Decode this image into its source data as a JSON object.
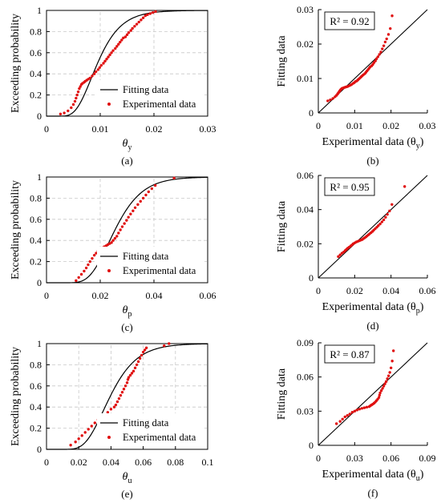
{
  "colors": {
    "fit_line": "#000000",
    "points": "#e01010",
    "grid": "#c8c8c8"
  },
  "chart_data": [
    {
      "type": "line",
      "panel_label": "(a)",
      "xlabel": "θ",
      "xlabel_sub": "y",
      "ylabel": "Exceeding probability",
      "xlim": [
        0,
        0.03
      ],
      "ylim": [
        0,
        1
      ],
      "xticks": [
        "0",
        "0.01",
        "0.02",
        "0.03"
      ],
      "yticks": [
        "0",
        "0.2",
        "0.4",
        "0.6",
        "0.8",
        "1"
      ],
      "grid": true,
      "legend_position": "bottom-right",
      "series": [
        {
          "name": "Fitting data",
          "kind": "line",
          "model": "lognormal",
          "median": 0.0095,
          "beta": 0.36
        },
        {
          "name": "Experimental data",
          "kind": "scatter",
          "x": [
            0.0026,
            0.0033,
            0.004,
            0.0046,
            0.005,
            0.0053,
            0.0055,
            0.0057,
            0.0059,
            0.0061,
            0.0063,
            0.0065,
            0.0067,
            0.007,
            0.0072,
            0.0075,
            0.0078,
            0.0081,
            0.0085,
            0.0089,
            0.0092,
            0.0096,
            0.0099,
            0.0102,
            0.0106,
            0.0109,
            0.0112,
            0.0115,
            0.0118,
            0.0121,
            0.0124,
            0.0128,
            0.0131,
            0.0134,
            0.0137,
            0.014,
            0.0143,
            0.0147,
            0.015,
            0.0153,
            0.0157,
            0.016,
            0.0164,
            0.0168,
            0.0172,
            0.0176,
            0.018,
            0.0184,
            0.0188,
            0.0193,
            0.0198,
            0.0203
          ],
          "y": [
            0.02,
            0.03,
            0.05,
            0.08,
            0.11,
            0.14,
            0.17,
            0.2,
            0.23,
            0.26,
            0.28,
            0.3,
            0.31,
            0.32,
            0.33,
            0.34,
            0.35,
            0.36,
            0.38,
            0.4,
            0.42,
            0.44,
            0.46,
            0.48,
            0.5,
            0.52,
            0.54,
            0.56,
            0.58,
            0.6,
            0.62,
            0.64,
            0.66,
            0.68,
            0.7,
            0.72,
            0.74,
            0.75,
            0.77,
            0.79,
            0.81,
            0.83,
            0.85,
            0.87,
            0.89,
            0.91,
            0.93,
            0.95,
            0.96,
            0.97,
            0.98,
            0.99
          ]
        }
      ]
    },
    {
      "type": "scatter",
      "panel_label": "(b)",
      "xlabel": "Experimental data (θ",
      "xlabel_sub": "y",
      "xlabel_end": ")",
      "ylabel": "Fitting data",
      "annotation": "R² = 0.92",
      "xlim": [
        0,
        0.03
      ],
      "ylim": [
        0,
        0.03
      ],
      "xticks": [
        "0",
        "0.01",
        "0.02",
        "0.03"
      ],
      "yticks": [
        "0",
        "0.01",
        "0.02",
        "0.03"
      ],
      "grid": false,
      "reference_line": "y=x",
      "series": [
        {
          "x": [
            0.0026,
            0.0033,
            0.004,
            0.0046,
            0.005,
            0.0053,
            0.0055,
            0.0057,
            0.0059,
            0.0061,
            0.0063,
            0.0065,
            0.0067,
            0.007,
            0.0072,
            0.0075,
            0.0078,
            0.0081,
            0.0085,
            0.0089,
            0.0092,
            0.0096,
            0.0099,
            0.0102,
            0.0106,
            0.0109,
            0.0112,
            0.0115,
            0.0118,
            0.0121,
            0.0124,
            0.0128,
            0.0131,
            0.0134,
            0.0137,
            0.014,
            0.0143,
            0.0147,
            0.015,
            0.0153,
            0.0157,
            0.016,
            0.0164,
            0.0168,
            0.0172,
            0.0176,
            0.018,
            0.0184,
            0.0188,
            0.0193,
            0.0198,
            0.0203
          ],
          "y": [
            0.0035,
            0.0038,
            0.0042,
            0.0047,
            0.0051,
            0.0055,
            0.0058,
            0.0061,
            0.0064,
            0.0067,
            0.0069,
            0.0071,
            0.0072,
            0.0073,
            0.0074,
            0.0075,
            0.0076,
            0.0077,
            0.0079,
            0.0081,
            0.0083,
            0.0086,
            0.0088,
            0.0091,
            0.0093,
            0.0096,
            0.0099,
            0.0102,
            0.0105,
            0.0108,
            0.0111,
            0.0114,
            0.0118,
            0.0122,
            0.0126,
            0.013,
            0.0134,
            0.0137,
            0.0141,
            0.0146,
            0.0151,
            0.0157,
            0.0163,
            0.017,
            0.0177,
            0.0186,
            0.0195,
            0.0206,
            0.0215,
            0.0228,
            0.0245,
            0.0282
          ]
        }
      ]
    },
    {
      "type": "line",
      "panel_label": "(c)",
      "xlabel": "θ",
      "xlabel_sub": "p",
      "ylabel": "Exceeding probability",
      "xlim": [
        0,
        0.06
      ],
      "ylim": [
        0,
        1
      ],
      "xticks": [
        "0",
        "0.02",
        "0.04",
        "0.06"
      ],
      "yticks": [
        "0",
        "0.2",
        "0.4",
        "0.6",
        "0.8",
        "1"
      ],
      "grid": true,
      "legend_position": "bottom-right",
      "series": [
        {
          "name": "Fitting data",
          "kind": "line",
          "model": "lognormal",
          "median": 0.0255,
          "beta": 0.31
        },
        {
          "name": "Experimental data",
          "kind": "scatter",
          "x": [
            0.011,
            0.012,
            0.013,
            0.014,
            0.0148,
            0.0155,
            0.0162,
            0.017,
            0.0178,
            0.0185,
            0.0192,
            0.02,
            0.0208,
            0.0215,
            0.0222,
            0.0228,
            0.0235,
            0.0242,
            0.0248,
            0.0255,
            0.0262,
            0.0268,
            0.0275,
            0.0282,
            0.029,
            0.0298,
            0.0305,
            0.0313,
            0.0322,
            0.033,
            0.034,
            0.035,
            0.036,
            0.037,
            0.038,
            0.0392,
            0.0405,
            0.0475
          ],
          "y": [
            0.02,
            0.05,
            0.08,
            0.11,
            0.14,
            0.17,
            0.2,
            0.23,
            0.26,
            0.28,
            0.3,
            0.32,
            0.33,
            0.34,
            0.35,
            0.36,
            0.37,
            0.38,
            0.4,
            0.42,
            0.44,
            0.47,
            0.5,
            0.53,
            0.56,
            0.59,
            0.62,
            0.65,
            0.68,
            0.71,
            0.74,
            0.77,
            0.8,
            0.83,
            0.86,
            0.89,
            0.92,
            0.99
          ]
        }
      ]
    },
    {
      "type": "scatter",
      "panel_label": "(d)",
      "xlabel": "Experimental data (θ",
      "xlabel_sub": "p",
      "xlabel_end": ")",
      "ylabel": "Fitting data",
      "annotation": "R² = 0.95",
      "xlim": [
        0,
        0.06
      ],
      "ylim": [
        0,
        0.06
      ],
      "xticks": [
        "0",
        "0.02",
        "0.04",
        "0.06"
      ],
      "yticks": [
        "0",
        "0.02",
        "0.04",
        "0.06"
      ],
      "grid": false,
      "reference_line": "y=x",
      "series": [
        {
          "x": [
            0.011,
            0.012,
            0.013,
            0.014,
            0.0148,
            0.0155,
            0.0162,
            0.017,
            0.0178,
            0.0185,
            0.0192,
            0.02,
            0.0208,
            0.0215,
            0.0222,
            0.0228,
            0.0235,
            0.0242,
            0.0248,
            0.0255,
            0.0262,
            0.0268,
            0.0275,
            0.0282,
            0.029,
            0.0298,
            0.0305,
            0.0313,
            0.0322,
            0.033,
            0.034,
            0.035,
            0.036,
            0.037,
            0.038,
            0.0392,
            0.0405,
            0.0475
          ],
          "y": [
            0.0125,
            0.0135,
            0.0145,
            0.0152,
            0.016,
            0.0167,
            0.0174,
            0.018,
            0.0187,
            0.0193,
            0.02,
            0.0205,
            0.021,
            0.0213,
            0.0216,
            0.0219,
            0.0222,
            0.0225,
            0.023,
            0.0235,
            0.024,
            0.0246,
            0.0252,
            0.0258,
            0.0265,
            0.0272,
            0.028,
            0.0288,
            0.0297,
            0.0306,
            0.0316,
            0.0328,
            0.034,
            0.0355,
            0.0372,
            0.0392,
            0.043,
            0.0535
          ]
        }
      ]
    },
    {
      "type": "line",
      "panel_label": "(e)",
      "xlabel": "θ",
      "xlabel_sub": "u",
      "ylabel": "Exceeding probability",
      "xlim": [
        0,
        0.1
      ],
      "ylim": [
        0,
        1
      ],
      "xticks": [
        "0",
        "0.02",
        "0.04",
        "0.06",
        "0.08",
        "0.1"
      ],
      "yticks": [
        "0",
        "0.2",
        "0.4",
        "0.6",
        "0.8",
        "1"
      ],
      "grid": true,
      "legend_position": "bottom-right",
      "series": [
        {
          "name": "Fitting data",
          "kind": "line",
          "model": "lognormal",
          "median": 0.0395,
          "beta": 0.33
        },
        {
          "name": "Experimental data",
          "kind": "scatter",
          "x": [
            0.015,
            0.018,
            0.02,
            0.022,
            0.024,
            0.026,
            0.028,
            0.03,
            0.032,
            0.034,
            0.036,
            0.038,
            0.04,
            0.042,
            0.043,
            0.044,
            0.045,
            0.046,
            0.047,
            0.048,
            0.049,
            0.05,
            0.0505,
            0.051,
            0.052,
            0.053,
            0.054,
            0.055,
            0.056,
            0.057,
            0.058,
            0.059,
            0.06,
            0.061,
            0.062,
            0.073,
            0.076
          ],
          "y": [
            0.04,
            0.07,
            0.1,
            0.13,
            0.16,
            0.19,
            0.22,
            0.25,
            0.28,
            0.3,
            0.32,
            0.35,
            0.38,
            0.4,
            0.42,
            0.45,
            0.48,
            0.51,
            0.54,
            0.57,
            0.6,
            0.63,
            0.66,
            0.68,
            0.7,
            0.72,
            0.74,
            0.77,
            0.8,
            0.83,
            0.86,
            0.89,
            0.92,
            0.94,
            0.96,
            0.98,
            1.0
          ]
        }
      ]
    },
    {
      "type": "scatter",
      "panel_label": "(f)",
      "xlabel": "Experimental data (θ",
      "xlabel_sub": "u",
      "xlabel_end": ")",
      "ylabel": "Fitting data",
      "annotation": "R² = 0.87",
      "xlim": [
        0,
        0.09
      ],
      "ylim": [
        0,
        0.09
      ],
      "xticks": [
        "0",
        "0.03",
        "0.06",
        "0.09"
      ],
      "yticks": [
        "0",
        "0.03",
        "0.06",
        "0.09"
      ],
      "grid": false,
      "reference_line": "y=x",
      "series": [
        {
          "x": [
            0.015,
            0.018,
            0.02,
            0.022,
            0.024,
            0.026,
            0.028,
            0.03,
            0.032,
            0.034,
            0.036,
            0.038,
            0.04,
            0.042,
            0.043,
            0.044,
            0.045,
            0.046,
            0.047,
            0.048,
            0.049,
            0.05,
            0.0505,
            0.051,
            0.052,
            0.053,
            0.054,
            0.055,
            0.056,
            0.057,
            0.058,
            0.059,
            0.06,
            0.061,
            0.062
          ],
          "y": [
            0.019,
            0.021,
            0.023,
            0.025,
            0.0262,
            0.0275,
            0.029,
            0.03,
            0.031,
            0.0318,
            0.0325,
            0.033,
            0.0335,
            0.034,
            0.0348,
            0.0355,
            0.0362,
            0.037,
            0.038,
            0.0392,
            0.0405,
            0.042,
            0.044,
            0.046,
            0.048,
            0.05,
            0.052,
            0.054,
            0.056,
            0.0585,
            0.061,
            0.064,
            0.068,
            0.074,
            0.083
          ]
        }
      ]
    }
  ]
}
